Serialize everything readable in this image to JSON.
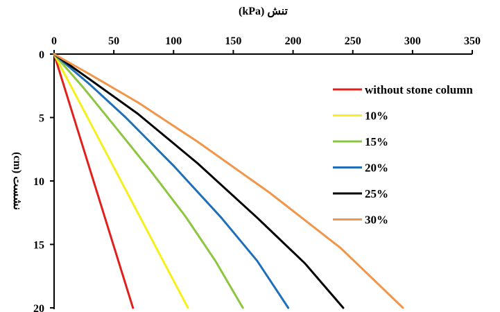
{
  "chart_data": {
    "type": "line",
    "x_axis_title": "تنش (kPa)",
    "y_axis_title": "نشست (cm)",
    "x_axis_position": "top",
    "y_axis_inverted": true,
    "xlim": [
      0,
      350
    ],
    "ylim": [
      0,
      20
    ],
    "x_ticks": [
      0,
      50,
      100,
      150,
      200,
      250,
      300,
      350
    ],
    "y_ticks": [
      0,
      5,
      10,
      15,
      20
    ],
    "grid": false,
    "legend_position": "right",
    "series": [
      {
        "name": "without stone column",
        "color": "#e0201b",
        "x": [
          0,
          66
        ],
        "y": [
          0,
          20
        ]
      },
      {
        "name": "10%",
        "color": "#f5f01c",
        "x": [
          0,
          112
        ],
        "y": [
          0,
          20
        ]
      },
      {
        "name": "15%",
        "color": "#8cc63f",
        "x": [
          0,
          25,
          50,
          80,
          110,
          135,
          158
        ],
        "y": [
          0,
          2.7,
          5.6,
          9.1,
          12.8,
          16.3,
          20
        ]
      },
      {
        "name": "20%",
        "color": "#1f6fb8",
        "x": [
          0,
          30,
          60,
          100,
          140,
          170,
          196
        ],
        "y": [
          0,
          2.4,
          5.0,
          8.8,
          12.9,
          16.3,
          20
        ]
      },
      {
        "name": "25%",
        "color": "#000000",
        "x": [
          0,
          30,
          70,
          120,
          170,
          210,
          242
        ],
        "y": [
          0,
          2.0,
          4.7,
          8.6,
          12.9,
          16.5,
          20
        ]
      },
      {
        "name": "30%",
        "color": "#f0954a",
        "x": [
          0,
          30,
          70,
          120,
          180,
          240,
          292
        ],
        "y": [
          0,
          1.6,
          3.8,
          6.9,
          10.9,
          15.3,
          20
        ]
      }
    ]
  }
}
